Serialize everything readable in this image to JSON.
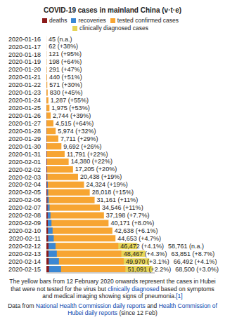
{
  "chart_data": {
    "type": "bar",
    "title": "COVID-19 cases in mainland China (v·t·e)",
    "orientation": "horizontal",
    "stacked": false,
    "data_labels": true,
    "grid": false,
    "tick_labels": "y",
    "xlim": [
      0,
      70000
    ],
    "categories": [
      "2020-01-16",
      "2020-01-17",
      "2020-01-18",
      "2020-01-19",
      "2020-01-20",
      "2020-01-21",
      "2020-01-22",
      "2020-01-23",
      "2020-01-24",
      "2020-01-25",
      "2020-01-26",
      "2020-01-27",
      "2020-01-28",
      "2020-01-29",
      "2020-01-30",
      "2020-01-31",
      "2020-02-01",
      "2020-02-02",
      "2020-02-03",
      "2020-02-04",
      "2020-02-05",
      "2020-02-06",
      "2020-02-07",
      "2020-02-08",
      "2020-02-09",
      "2020-02-10",
      "2020-02-11",
      "2020-02-12",
      "2020-02-13",
      "2020-02-14",
      "2020-02-15"
    ],
    "series": [
      {
        "name": "deaths",
        "color": "#8b1a1a",
        "values": [
          2,
          2,
          3,
          4,
          6,
          9,
          17,
          25,
          41,
          56,
          80,
          106,
          132,
          170,
          213,
          259,
          304,
          361,
          425,
          490,
          563,
          636,
          722,
          811,
          908,
          1016,
          1113,
          1367,
          1380,
          1523,
          1665
        ]
      },
      {
        "name": "recoveries",
        "color": "#3a87d4",
        "values": [
          12,
          19,
          25,
          25,
          25,
          28,
          28,
          34,
          38,
          49,
          51,
          60,
          103,
          124,
          171,
          243,
          328,
          475,
          632,
          892,
          1153,
          1540,
          2050,
          2649,
          3281,
          3996,
          4740,
          5911,
          6723,
          8096,
          9419
        ]
      },
      {
        "name": "tested confirmed cases",
        "color": "#f7a532",
        "values": [
          45,
          62,
          121,
          198,
          291,
          440,
          571,
          830,
          1287,
          1975,
          2744,
          4515,
          5974,
          7711,
          9692,
          11791,
          14380,
          17205,
          20438,
          24324,
          28018,
          31161,
          34546,
          37198,
          40171,
          42638,
          44653,
          46472,
          48467,
          49970,
          51091
        ],
        "value_labels": [
          "45 (n.a.)",
          "62 (+38%)",
          "121 (+95%)",
          "198 (+64%)",
          "291 (+47%)",
          "440 (+51%)",
          "571 (+30%)",
          "830 (+45%)",
          "1,287 (+55%)",
          "1,975 (+53%)",
          "2,744 (+39%)",
          "4,515 (+64%)",
          "5,974 (+32%)",
          "7,711 (+29%)",
          "9,692 (+26%)",
          "11,791 (+22%)",
          "14,380 (+22%)",
          "17,205 (+20%)",
          "20,438 (+19%)",
          "24,324 (+19%)",
          "28,018 (+15%)",
          "31,161 (+11%)",
          "34,546 (+11%)",
          "37,198 (+7.7%)",
          "40,171 (+8.0%)",
          "42,638 (+6.1%)",
          "44,653 (+4.7%)",
          "46,472 (+4.1%)",
          "48,467 (+4.3%)",
          "49,970 (+3.1%)",
          "51,091 (+2.2%)"
        ]
      },
      {
        "name": "clinically diagnosed cases",
        "color": "#e6d456",
        "values": [
          null,
          null,
          null,
          null,
          null,
          null,
          null,
          null,
          null,
          null,
          null,
          null,
          null,
          null,
          null,
          null,
          null,
          null,
          null,
          null,
          null,
          null,
          null,
          null,
          null,
          null,
          null,
          58761,
          63851,
          66492,
          68500
        ],
        "value_labels": [
          null,
          null,
          null,
          null,
          null,
          null,
          null,
          null,
          null,
          null,
          null,
          null,
          null,
          null,
          null,
          null,
          null,
          null,
          null,
          null,
          null,
          null,
          null,
          null,
          null,
          null,
          null,
          "58,761 (n.a.)",
          "63,851 (+8.7%)",
          "66,492 (+4.1%)",
          "68,500 (+3.0%)"
        ]
      }
    ],
    "note": [
      "The yellow bars from 12 February 2020 onwards represent the cases in Hubei that were not tested for the virus but ",
      "clinically diagnosed",
      " based on symptoms and medical imaging showing signs of pneumonia.",
      "[1]"
    ],
    "sources": [
      "Data from ",
      "National Health Commission daily reports",
      " and ",
      "Health Commission of Hubei daily reports",
      " (since 12 Feb)"
    ]
  }
}
